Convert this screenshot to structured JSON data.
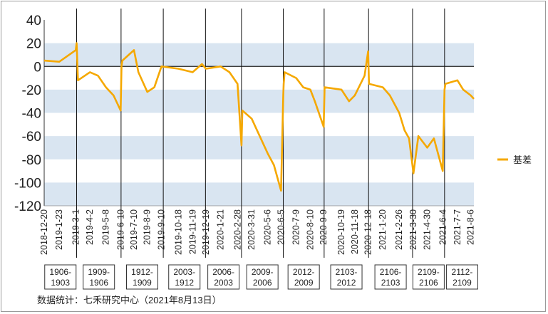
{
  "chart_data": {
    "type": "line",
    "ylim": [
      -120,
      40
    ],
    "yticks": [
      40,
      20,
      0,
      -20,
      -40,
      -60,
      -80,
      -100,
      -120
    ],
    "grid_bands": true,
    "legend_position": "right",
    "source": "数据统计：七禾研究中心（2021年8月13日）",
    "series": [
      {
        "name": "基差",
        "color": "#f5a800",
        "x": [
          "2018-12-20",
          "2019-1-23",
          "2019-3-1",
          "2019-3-3",
          "2019-3-6",
          "2019-4-2",
          "2019-4-20",
          "2019-5-8",
          "2019-5-25",
          "2019-6-10",
          "2019-6-12",
          "2019-6-14",
          "2019-7-10",
          "2019-7-20",
          "2019-8-9",
          "2019-8-25",
          "2019-9-10",
          "2019-10-18",
          "2019-11-19",
          "2019-12-10",
          "2019-12-19",
          "2020-1-21",
          "2020-2-10",
          "2020-2-28",
          "2020-3-8",
          "2020-3-10",
          "2020-3-31",
          "2020-4-18",
          "2020-5-6",
          "2020-5-20",
          "2020-6-5",
          "2020-6-10",
          "2020-6-11",
          "2020-6-13",
          "2020-7-9",
          "2020-7-25",
          "2020-8-10",
          "2020-8-20",
          "2020-9-9",
          "2020-9-11",
          "2020-10-19",
          "2020-11-5",
          "2020-11-18",
          "2020-12-10",
          "2020-12-18",
          "2020-12-20",
          "2021-1-20",
          "2021-2-5",
          "2021-2-26",
          "2021-3-10",
          "2021-3-20",
          "2021-3-30",
          "2021-4-10",
          "2021-4-30",
          "2021-5-15",
          "2021-6-4",
          "2021-6-8",
          "2021-6-10",
          "2021-7-7",
          "2021-7-20",
          "2021-8-6",
          "2021-8-13"
        ],
        "values": [
          5,
          4,
          14,
          20,
          -12,
          -5,
          -8,
          -18,
          -25,
          -38,
          0,
          5,
          14,
          -5,
          -22,
          -18,
          0,
          -2,
          -5,
          2,
          -2,
          0,
          -5,
          -15,
          -68,
          -38,
          -45,
          -60,
          -75,
          -85,
          -107,
          -25,
          -15,
          -5,
          -10,
          -18,
          -20,
          -30,
          -52,
          -18,
          -20,
          -30,
          -25,
          -8,
          13,
          -15,
          -18,
          -25,
          -40,
          -55,
          -62,
          -92,
          -60,
          -70,
          -62,
          -90,
          -20,
          -15,
          -12,
          -20,
          -25,
          -28
        ]
      }
    ],
    "dividers": [
      "2019-3-3",
      "2019-6-11",
      "2019-9-14",
      "2019-12-18",
      "2020-3-8",
      "2020-6-10",
      "2020-9-10",
      "2020-12-19",
      "2021-3-28",
      "2021-6-8"
    ],
    "contracts": [
      "1906-\n1903",
      "1909-\n1906",
      "1912-\n1909",
      "2003-\n1912",
      "2006-\n2003",
      "2009-\n2006",
      "2012-\n2009",
      "2103-\n2012",
      "2106-\n2103",
      "2109-\n2106",
      "2112-\n2109"
    ],
    "x_tick_labels": [
      "2018-12-20",
      "2019-1-23",
      "2019-3-1",
      "2019-4-2",
      "2019-5-8",
      "2019-6-10",
      "2019-7-10",
      "2019-8-9",
      "2019-9-10",
      "2019-10-18",
      "2019-11-19",
      "2019-12-19",
      "2020-1-21",
      "2020-2-28",
      "2020-3-31",
      "2020-5-6",
      "2020-6-5",
      "2020-7-9",
      "2020-8-10",
      "2020-9-9",
      "2020-10-19",
      "2020-11-18",
      "2020-12-18",
      "2021-1-20",
      "2021-2-26",
      "2021-3-30",
      "2021-4-30",
      "2021-6-4",
      "2021-7-7",
      "2021-8-6"
    ]
  }
}
